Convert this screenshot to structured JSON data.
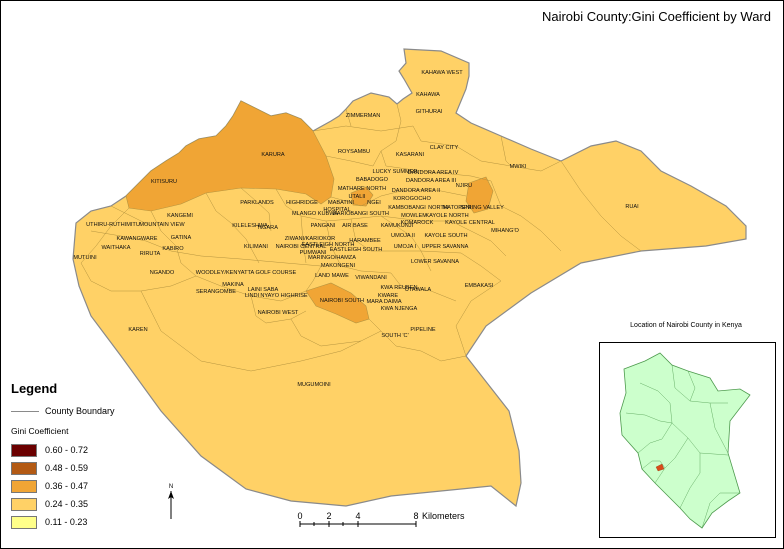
{
  "title": "Nairobi County:Gini Coefficient by Ward",
  "legend": {
    "title": "Legend",
    "boundary_label": "County Boundary",
    "gini_title": "Gini Coefficient",
    "classes": [
      {
        "label": "0.60 - 0.72",
        "color": "#6b0000"
      },
      {
        "label": "0.48 - 0.59",
        "color": "#b35a14"
      },
      {
        "label": "0.36 - 0.47",
        "color": "#f0a535"
      },
      {
        "label": "0.24 - 0.35",
        "color": "#ffd166"
      },
      {
        "label": "0.11 - 0.23",
        "color": "#ffff8a"
      }
    ]
  },
  "inset_title": "Location of Nairobi County in Kenya",
  "inset_colors": {
    "kenya": "#ccffcc",
    "nairobi": "#d94c1a",
    "border": "#4d9a4d"
  },
  "north_label": "N",
  "scale": {
    "ticks": [
      "0",
      "2",
      "4",
      "8"
    ],
    "unit": "Kilometers"
  },
  "map_colors": {
    "base_fill": "#ffd166",
    "mid_fill": "#f0a535",
    "outline": "#8a8a8a",
    "ward_line": "#b5943f"
  },
  "wards": [
    "KAHAWA WEST",
    "KAHAWA",
    "ZIMMERMAN",
    "GITHURAI",
    "ROYSAMBU",
    "KARURA",
    "KASARANI",
    "CLAY CITY",
    "MWIKI",
    "KITISURU",
    "LUCKY SUMMER",
    "DANDORA AREA IV",
    "BABADOGO",
    "DANDORA AREA III",
    "NJIRU",
    "MATHARE NORTH",
    "UTALII",
    "DANDORA AREA II",
    "PARKLANDS",
    "HIGHRIDGE",
    "MABATINI",
    "HOSPITAL",
    "NGEI",
    "KOROGOCHO",
    "KAMBOBANGI",
    "NORTH",
    "MATOPENI",
    "SPRING VALLEY",
    "RUAI",
    "KANGEMI",
    "MLANGO KUBWA",
    "KARIOBANGI SOUTH",
    "MOWLEM",
    "KAYOLE NORTH",
    "UTHIRU-RUTHIMITU",
    "MOUNTAIN VIEW",
    "KILELESHWA",
    "KAMUKUNJI",
    "KOMAROCK",
    "KAYOLE CENTRAL",
    "MIHANG'O",
    "KAWANGWARE",
    "GATINA",
    "NGARA",
    "PANGANI",
    "AIR BASE",
    "UMOJA II",
    "KAYOLE SOUTH",
    "KILIMANI",
    "ZIWANI/KARIOKOR",
    "EASTLEIGH NORTH",
    "HARAMBEE",
    "UMOJA I",
    "UPPER SAVANNA",
    "WAITHAKA",
    "RIRUTA",
    "KABIRO",
    "NAIROBI CENTRAL",
    "PUMWANI",
    "EASTLEIGH SOUTH",
    "MUTUINI",
    "MARINGO/HAMZA",
    "LOWER SAVANNA",
    "MAKONGENI",
    "NGANDO",
    "WOODLEY/KENYATTA GOLF COURSE",
    "LAND MAWE",
    "VIWANDANI",
    "EMBAKASI",
    "MAKINA",
    "LAINI SABA",
    "KWA REUBEN",
    "UTAWALA",
    "SERANGOMBE",
    "LINDI",
    "NYAYO HIGHRISE",
    "KWARE",
    "NAIROBI SOUTH",
    "MARA DAIMA",
    "NAIROBI WEST",
    "KWA NJENGA",
    "KAREN",
    "PIPELINE",
    "SOUTH 'C'",
    "MUGUMOINI"
  ]
}
